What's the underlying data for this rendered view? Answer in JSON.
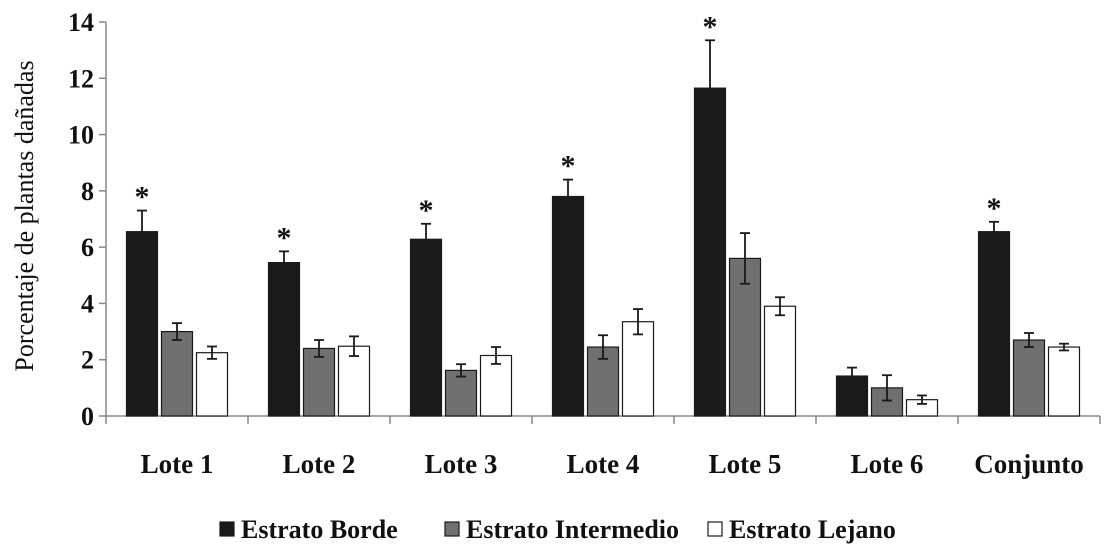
{
  "chart_data": {
    "type": "bar",
    "title": "",
    "xlabel": "",
    "ylabel": "Porcentaje de plantas dañadas",
    "ylim": [
      0,
      14
    ],
    "yticks": [
      0,
      2,
      4,
      6,
      8,
      10,
      12,
      14
    ],
    "grid": false,
    "legend_position": "bottom",
    "categories": [
      "Lote 1",
      "Lote 2",
      "Lote 3",
      "Lote 4",
      "Lote 5",
      "Lote 6",
      "Conjunto"
    ],
    "series": [
      {
        "name": "Estrato Borde",
        "color": "#1a1a1a",
        "values": [
          6.55,
          5.45,
          6.28,
          7.8,
          11.65,
          1.42,
          6.55
        ],
        "errors": [
          0.75,
          0.4,
          0.55,
          0.6,
          1.7,
          0.3,
          0.35
        ]
      },
      {
        "name": "Estrato Intermedio",
        "color": "#707070",
        "values": [
          3.0,
          2.4,
          1.62,
          2.45,
          5.6,
          1.0,
          2.7
        ],
        "errors": [
          0.3,
          0.3,
          0.22,
          0.42,
          0.9,
          0.45,
          0.25
        ]
      },
      {
        "name": "Estrato Lejano",
        "color": "#ffffff",
        "values": [
          2.25,
          2.48,
          2.15,
          3.35,
          3.9,
          0.58,
          2.45
        ],
        "errors": [
          0.22,
          0.35,
          0.3,
          0.45,
          0.32,
          0.15,
          0.12
        ]
      }
    ],
    "annotations": [
      {
        "category": "Lote 1",
        "text": "*"
      },
      {
        "category": "Lote 2",
        "text": "*"
      },
      {
        "category": "Lote 3",
        "text": "*"
      },
      {
        "category": "Lote 4",
        "text": "*"
      },
      {
        "category": "Lote 5",
        "text": "*"
      },
      {
        "category": "Conjunto",
        "text": "*"
      }
    ]
  }
}
